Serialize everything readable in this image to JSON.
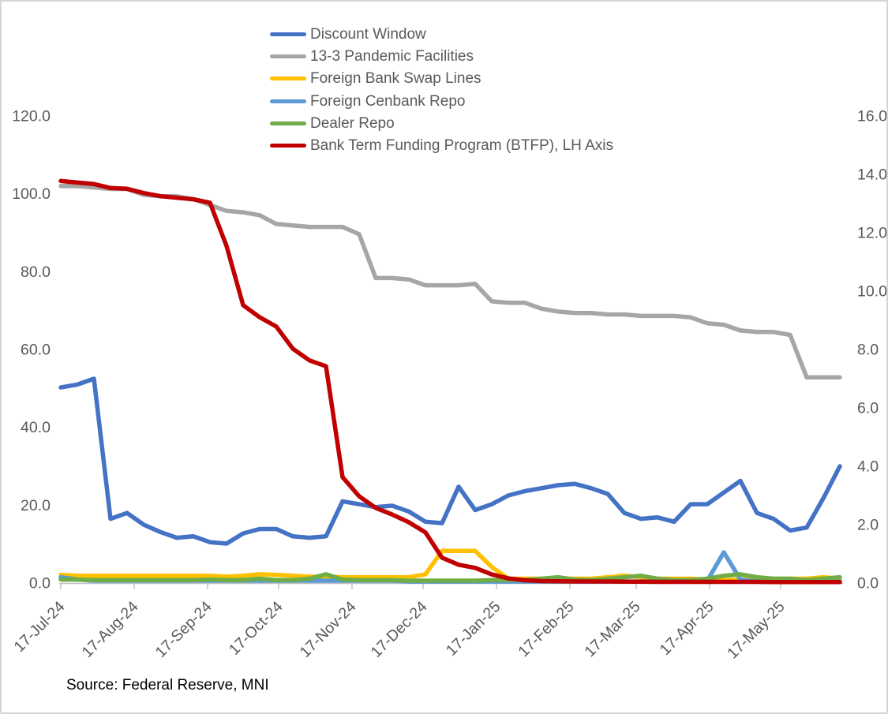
{
  "source": "Source: Federal Reserve, MNI",
  "colors": {
    "axis_line": "#BFBFBF",
    "tick_text": "#595959",
    "legend_text": "#595959",
    "source_text": "#000000",
    "frame_border": "#D6D6D6",
    "background": "#FFFFFF"
  },
  "chart_data": {
    "type": "line",
    "title": "",
    "grid": "off",
    "legend_position": "top-center",
    "x_axis": {
      "kind": "weekly-dates",
      "start_label": "17-Jul-24",
      "points_interval_days": 7,
      "n_points": 48,
      "total_days": 329,
      "tick_labels": [
        "17-Jul-24",
        "17-Aug-24",
        "17-Sep-24",
        "17-Oct-24",
        "17-Nov-24",
        "17-Dec-24",
        "17-Jan-25",
        "17-Feb-25",
        "17-Mar-25",
        "17-Apr-25",
        "17-May-25"
      ],
      "tick_day_offsets": [
        0,
        31,
        62,
        92,
        123,
        153,
        184,
        215,
        243,
        274,
        304
      ]
    },
    "left_axis": {
      "min": 0,
      "max": 120,
      "step": 20,
      "labels": [
        "0.0",
        "20.0",
        "40.0",
        "60.0",
        "80.0",
        "100.0",
        "120.0"
      ]
    },
    "right_axis": {
      "min": 0,
      "max": 16,
      "step": 2,
      "labels": [
        "0.0",
        "2.0",
        "4.0",
        "6.0",
        "8.0",
        "10.0",
        "12.0",
        "14.0",
        "16.0"
      ]
    },
    "series": [
      {
        "name": "Discount Window",
        "slug": "discount-window",
        "color": "#4472C4",
        "axis": "right",
        "values": [
          6.7,
          6.8,
          7.0,
          2.2,
          2.4,
          2.0,
          1.75,
          1.55,
          1.6,
          1.4,
          1.35,
          1.7,
          1.85,
          1.85,
          1.6,
          1.55,
          1.6,
          2.8,
          2.7,
          2.6,
          2.65,
          2.45,
          2.1,
          2.05,
          3.3,
          2.5,
          2.7,
          3.0,
          3.15,
          3.25,
          3.35,
          3.4,
          3.25,
          3.05,
          2.4,
          2.2,
          2.25,
          2.1,
          2.7,
          2.7,
          3.1,
          3.5,
          2.4,
          2.2,
          1.8,
          1.9,
          2.9,
          4.0
        ]
      },
      {
        "name": "13-3 Pandemic Facilities",
        "slug": "pandemic-facilities",
        "color": "#A6A6A6",
        "axis": "right",
        "values": [
          13.6,
          13.6,
          13.55,
          13.5,
          13.5,
          13.3,
          13.25,
          13.25,
          13.15,
          12.95,
          12.75,
          12.7,
          12.6,
          12.3,
          12.25,
          12.2,
          12.2,
          12.2,
          11.95,
          10.45,
          10.45,
          10.4,
          10.2,
          10.2,
          10.2,
          10.25,
          9.65,
          9.6,
          9.6,
          9.4,
          9.3,
          9.25,
          9.25,
          9.2,
          9.2,
          9.15,
          9.15,
          9.15,
          9.1,
          8.9,
          8.85,
          8.65,
          8.6,
          8.6,
          8.5,
          7.05,
          7.05,
          7.05
        ]
      },
      {
        "name": "Foreign Bank Swap Lines",
        "slug": "foreign-bank-swap-lines",
        "color": "#FFC000",
        "axis": "right",
        "values": [
          0.28,
          0.25,
          0.25,
          0.25,
          0.25,
          0.25,
          0.25,
          0.25,
          0.25,
          0.25,
          0.22,
          0.25,
          0.3,
          0.28,
          0.25,
          0.22,
          0.22,
          0.2,
          0.2,
          0.2,
          0.2,
          0.2,
          0.3,
          1.1,
          1.1,
          1.1,
          0.55,
          0.15,
          0.15,
          0.15,
          0.15,
          0.15,
          0.15,
          0.2,
          0.25,
          0.2,
          0.15,
          0.15,
          0.15,
          0.12,
          0.1,
          0.12,
          0.15,
          0.15,
          0.15,
          0.15,
          0.2,
          0.15
        ]
      },
      {
        "name": "Foreign Cenbank Repo",
        "slug": "foreign-cenbank-repo",
        "color": "#5B9BD5",
        "axis": "right",
        "values": [
          0.2,
          0.12,
          0.08,
          0.08,
          0.08,
          0.08,
          0.08,
          0.08,
          0.08,
          0.08,
          0.08,
          0.08,
          0.08,
          0.08,
          0.08,
          0.08,
          0.08,
          0.08,
          0.08,
          0.08,
          0.08,
          0.05,
          0.05,
          0.05,
          0.05,
          0.05,
          0.05,
          0.05,
          0.05,
          0.05,
          0.05,
          0.05,
          0.05,
          0.05,
          0.05,
          0.05,
          0.05,
          0.05,
          0.05,
          0.08,
          1.05,
          0.12,
          0.05,
          0.05,
          0.05,
          0.05,
          0.05,
          0.05
        ]
      },
      {
        "name": "Dealer Repo",
        "slug": "dealer-repo",
        "color": "#70AD47",
        "axis": "right",
        "values": [
          0.12,
          0.12,
          0.1,
          0.1,
          0.1,
          0.1,
          0.1,
          0.1,
          0.1,
          0.12,
          0.1,
          0.1,
          0.15,
          0.1,
          0.1,
          0.15,
          0.3,
          0.12,
          0.1,
          0.1,
          0.1,
          0.08,
          0.08,
          0.08,
          0.08,
          0.08,
          0.1,
          0.1,
          0.1,
          0.15,
          0.2,
          0.12,
          0.1,
          0.15,
          0.2,
          0.25,
          0.15,
          0.1,
          0.1,
          0.15,
          0.25,
          0.3,
          0.2,
          0.15,
          0.15,
          0.1,
          0.15,
          0.2
        ]
      },
      {
        "name": "Bank Term Funding Program (BTFP), LH Axis",
        "slug": "btfp",
        "color": "#C00000",
        "axis": "left",
        "values": [
          103.3,
          102.9,
          102.5,
          101.5,
          101.3,
          100.2,
          99.4,
          99.0,
          98.6,
          97.7,
          86.6,
          71.4,
          68.3,
          65.9,
          60.2,
          57.2,
          55.7,
          27.2,
          22.3,
          19.3,
          17.6,
          15.6,
          13.0,
          6.5,
          4.7,
          3.9,
          2.2,
          1.2,
          0.7,
          0.5,
          0.45,
          0.4,
          0.4,
          0.4,
          0.35,
          0.35,
          0.3,
          0.3,
          0.3,
          0.3,
          0.3,
          0.3,
          0.3,
          0.25,
          0.25,
          0.25,
          0.25,
          0.25
        ]
      }
    ]
  }
}
